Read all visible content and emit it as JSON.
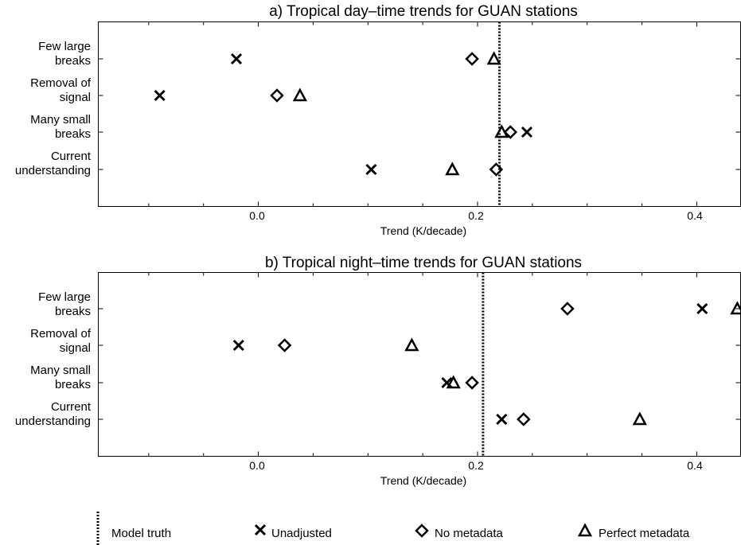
{
  "chart_data": [
    {
      "type": "scatter",
      "title": "a) Tropical day–time trends for GUAN stations",
      "xlabel": "Trend (K/decade)",
      "xlim": [
        -0.146,
        0.44
      ],
      "xticks": [
        0.0,
        0.2,
        0.4
      ],
      "xtick_labels": [
        "0.0",
        "0.2",
        "0.4"
      ],
      "categories": [
        "Few large breaks",
        "Removal of signal",
        "Many small breaks",
        "Current understanding"
      ],
      "category_labels": [
        [
          "Few large",
          "breaks"
        ],
        [
          "Removal of",
          "signal"
        ],
        [
          "Many small",
          "breaks"
        ],
        [
          "Current",
          "understanding"
        ]
      ],
      "model_truth": 0.22,
      "series": [
        {
          "name": "Unadjusted",
          "marker": "x",
          "values": [
            -0.02,
            -0.09,
            0.245,
            0.103
          ]
        },
        {
          "name": "No metadata",
          "marker": "diamond",
          "values": [
            0.195,
            0.017,
            0.23,
            0.217
          ]
        },
        {
          "name": "Perfect metadata",
          "marker": "triangle",
          "values": [
            0.215,
            0.038,
            0.222,
            0.177
          ]
        }
      ]
    },
    {
      "type": "scatter",
      "title": "b) Tropical night–time trends for GUAN stations",
      "xlabel": "Trend (K/decade)",
      "xlim": [
        -0.146,
        0.44
      ],
      "xticks": [
        0.0,
        0.2,
        0.4
      ],
      "xtick_labels": [
        "0.0",
        "0.2",
        "0.4"
      ],
      "categories": [
        "Few large breaks",
        "Removal of signal",
        "Many small breaks",
        "Current understanding"
      ],
      "category_labels": [
        [
          "Few large",
          "breaks"
        ],
        [
          "Removal of",
          "signal"
        ],
        [
          "Many small",
          "breaks"
        ],
        [
          "Current",
          "understanding"
        ]
      ],
      "model_truth": 0.205,
      "series": [
        {
          "name": "Unadjusted",
          "marker": "x",
          "values": [
            0.405,
            -0.018,
            0.172,
            0.222
          ]
        },
        {
          "name": "No metadata",
          "marker": "diamond",
          "values": [
            0.282,
            0.024,
            0.195,
            0.242
          ]
        },
        {
          "name": "Perfect metadata",
          "marker": "triangle",
          "values": [
            0.437,
            0.14,
            0.178,
            0.348
          ]
        }
      ]
    }
  ],
  "legend": {
    "items": [
      {
        "label": "Model truth",
        "marker": "dotted-line"
      },
      {
        "label": "Unadjusted",
        "marker": "x"
      },
      {
        "label": "No metadata",
        "marker": "diamond"
      },
      {
        "label": "Perfect metadata",
        "marker": "triangle"
      }
    ]
  }
}
